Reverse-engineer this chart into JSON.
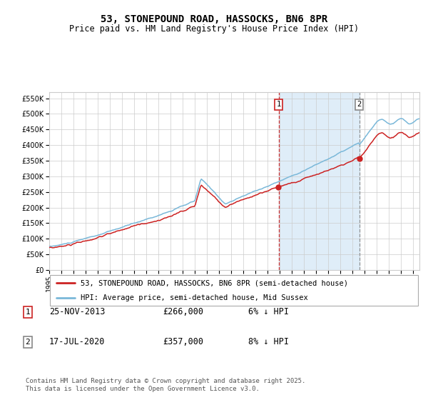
{
  "title": "53, STONEPOUND ROAD, HASSOCKS, BN6 8PR",
  "subtitle": "Price paid vs. HM Land Registry's House Price Index (HPI)",
  "hpi_color": "#7ab8d9",
  "price_color": "#cc2222",
  "shading_color": "#daeaf7",
  "grid_color": "#cccccc",
  "bg_color": "#ffffff",
  "ylim": [
    0,
    570000
  ],
  "yticks": [
    0,
    50000,
    100000,
    150000,
    200000,
    250000,
    300000,
    350000,
    400000,
    450000,
    500000,
    550000
  ],
  "sale1_date": 2013.9,
  "sale1_price": 266000,
  "sale1_label": "25-NOV-2013",
  "sale1_pct": "6% ↓ HPI",
  "sale2_date": 2020.54,
  "sale2_price": 357000,
  "sale2_label": "17-JUL-2020",
  "sale2_pct": "8% ↓ HPI",
  "legend_line1": "53, STONEPOUND ROAD, HASSOCKS, BN6 8PR (semi-detached house)",
  "legend_line2": "HPI: Average price, semi-detached house, Mid Sussex",
  "footer": "Contains HM Land Registry data © Crown copyright and database right 2025.\nThis data is licensed under the Open Government Licence v3.0.",
  "title_fontsize": 10,
  "subtitle_fontsize": 8.5,
  "tick_fontsize": 7,
  "legend_fontsize": 7.5,
  "footer_fontsize": 6.5,
  "table_fontsize": 8.5
}
